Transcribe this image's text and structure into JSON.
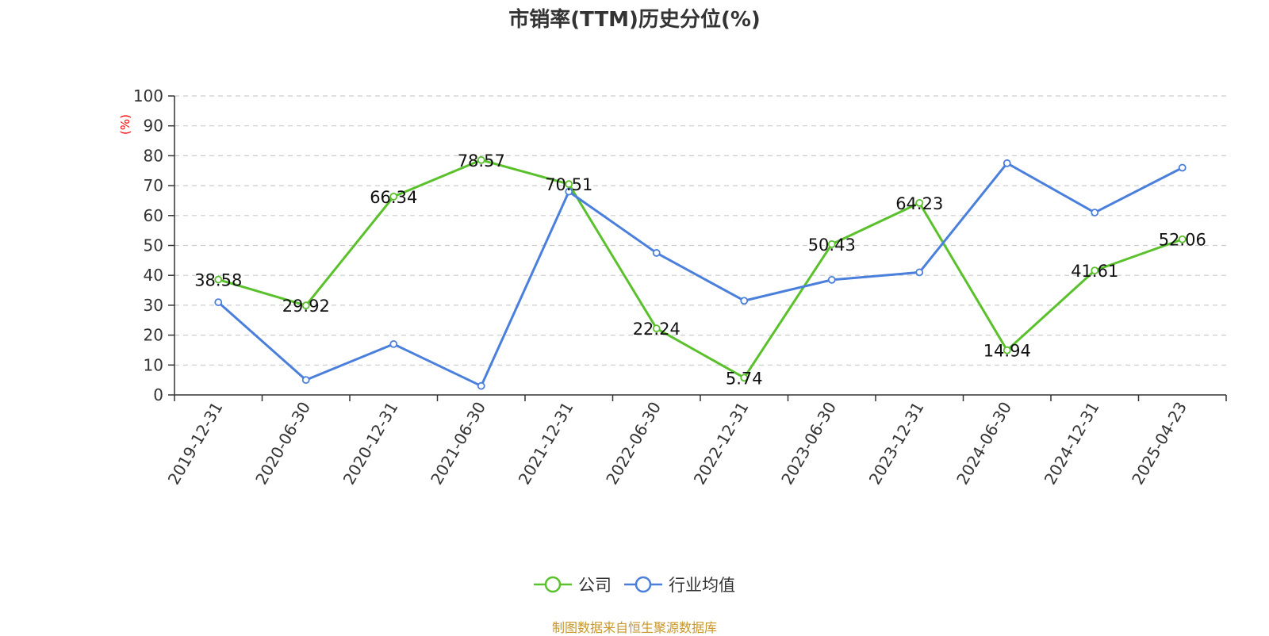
{
  "chart_data": {
    "type": "line",
    "title": "市销率(TTM)历史分位(%)",
    "ylabel": "(%)",
    "ylim": [
      0,
      100
    ],
    "yticks": [
      0,
      10,
      20,
      30,
      40,
      50,
      60,
      70,
      80,
      90,
      100
    ],
    "categories": [
      "2019-12-31",
      "2020-06-30",
      "2020-12-31",
      "2021-06-30",
      "2021-12-31",
      "2022-06-30",
      "2022-12-31",
      "2023-06-30",
      "2023-12-31",
      "2024-06-30",
      "2024-12-31",
      "2025-04-23"
    ],
    "series": [
      {
        "name": "公司",
        "color": "#5ac12c",
        "values": [
          38.58,
          29.92,
          66.34,
          78.57,
          70.51,
          22.24,
          5.74,
          50.43,
          64.23,
          14.94,
          41.61,
          52.06
        ],
        "labels": [
          "38.58",
          "29.92",
          "66.34",
          "78.57",
          "70.51",
          "22.24",
          "5.74",
          "50.43",
          "64.23",
          "14.94",
          "41.61",
          "52.06"
        ]
      },
      {
        "name": "行业均值",
        "color": "#4a7fdc",
        "values": [
          31,
          5,
          17,
          3,
          68,
          47.5,
          31.5,
          38.5,
          41,
          77.5,
          61,
          76
        ]
      }
    ],
    "grid": true,
    "legend_position": "bottom-center"
  },
  "source_note": "制图数据来自恒生聚源数据库",
  "colors": {
    "title": "#333333",
    "axis": "#333333",
    "grid": "#cccccc",
    "ylabel": "#ff0000",
    "source_note": "#c8962a"
  }
}
